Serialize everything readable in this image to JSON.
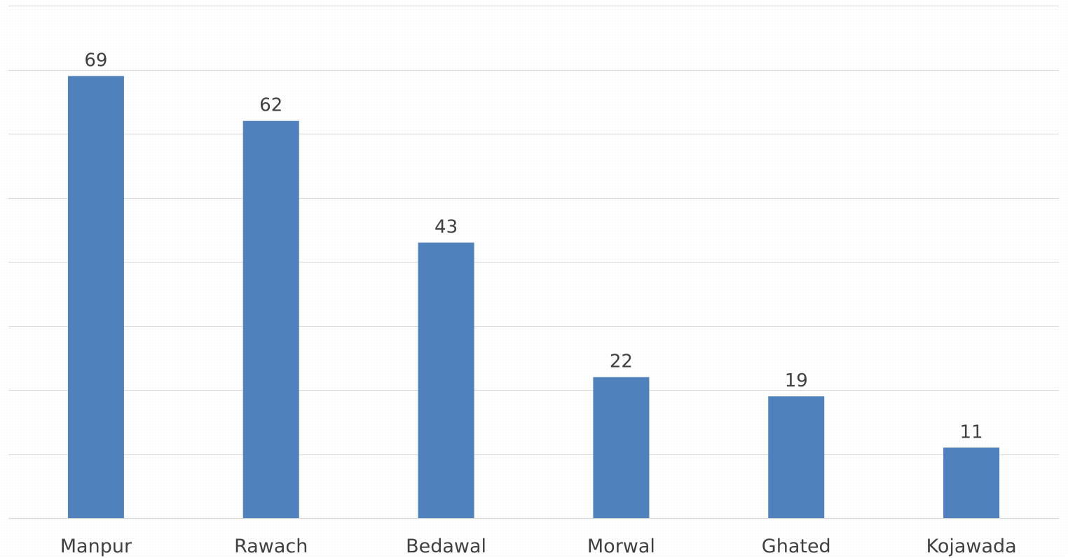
{
  "chart_data": {
    "type": "bar",
    "categories": [
      "Manpur",
      "Rawach",
      "Bedawal",
      "Morwal",
      "Ghated",
      "Kojawada"
    ],
    "values": [
      69,
      62,
      43,
      22,
      19,
      11
    ],
    "ylim": [
      0,
      80
    ],
    "grid": true,
    "legend": "none",
    "colors": {
      "bar": "#4f81bd",
      "gridline": "#d9d9d9",
      "text": "#404040"
    }
  }
}
